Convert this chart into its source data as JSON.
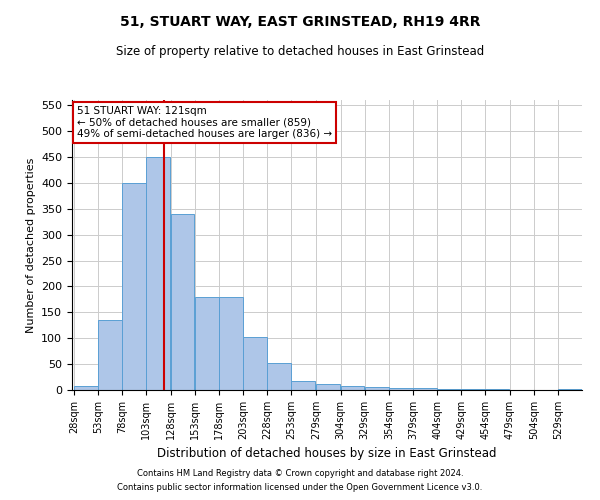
{
  "title": "51, STUART WAY, EAST GRINSTEAD, RH19 4RR",
  "subtitle": "Size of property relative to detached houses in East Grinstead",
  "xlabel": "Distribution of detached houses by size in East Grinstead",
  "ylabel": "Number of detached properties",
  "footer_line1": "Contains HM Land Registry data © Crown copyright and database right 2024.",
  "footer_line2": "Contains public sector information licensed under the Open Government Licence v3.0.",
  "annotation_title": "51 STUART WAY: 121sqm",
  "annotation_line1": "← 50% of detached houses are smaller (859)",
  "annotation_line2": "49% of semi-detached houses are larger (836) →",
  "bar_color": "#aec6e8",
  "bar_edge_color": "#5a9fd4",
  "vline_color": "#cc0000",
  "annotation_box_color": "#cc0000",
  "background_color": "#ffffff",
  "grid_color": "#cccccc",
  "bins": [
    28,
    53,
    78,
    103,
    128,
    153,
    178,
    203,
    228,
    253,
    279,
    304,
    329,
    354,
    379,
    404,
    429,
    454,
    479,
    504,
    529,
    554
  ],
  "values": [
    8,
    135,
    400,
    450,
    340,
    180,
    180,
    103,
    52,
    17,
    11,
    8,
    5,
    3,
    3,
    2,
    1,
    1,
    0,
    0,
    2
  ],
  "vline_x": 121,
  "ylim": [
    0,
    560
  ],
  "yticks": [
    0,
    50,
    100,
    150,
    200,
    250,
    300,
    350,
    400,
    450,
    500,
    550
  ]
}
